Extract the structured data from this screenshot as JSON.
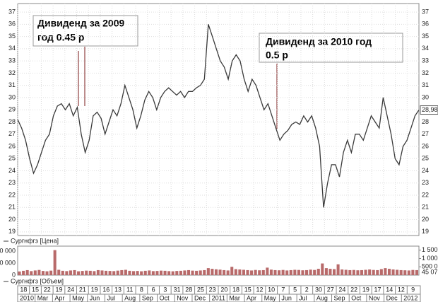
{
  "chart_data": [
    {
      "type": "line",
      "series": [
        {
          "name": "Сургнфгз [Цена]",
          "color": "#3a3a3a",
          "values": [
            28.2,
            27.5,
            26.5,
            25,
            23.8,
            24.5,
            25.5,
            26.5,
            27,
            28.5,
            29.3,
            29.5,
            29,
            29.5,
            28.5,
            29.2,
            27,
            25.5,
            26.5,
            28.5,
            28.8,
            28.3,
            27,
            28,
            29,
            28.5,
            29.5,
            31,
            30,
            29,
            27.5,
            28.5,
            29.8,
            30.5,
            30,
            29,
            30,
            30.5,
            30.8,
            30.5,
            30.2,
            30.5,
            30,
            30.5,
            30.5,
            30.8,
            31,
            31.5,
            36,
            35,
            34,
            33,
            32.5,
            31.5,
            33,
            33.5,
            33,
            31.5,
            30.5,
            31.5,
            31,
            30,
            29,
            29.5,
            28.5,
            27.5,
            26.5,
            27,
            27.3,
            27.8,
            28,
            27.8,
            28.5,
            28,
            28.5,
            27.5,
            26,
            21,
            23,
            24.5,
            24.5,
            23.5,
            25.5,
            26.5,
            25.5,
            27,
            27,
            26.5,
            27.5,
            28.5,
            28,
            27.5,
            30,
            28.5,
            27,
            25,
            24.5,
            26,
            26.5,
            27.5,
            28.5,
            28.98
          ]
        }
      ],
      "ylim": [
        18.7,
        37.7
      ],
      "yticks": [
        19,
        20,
        21,
        22,
        23,
        24,
        25,
        26,
        27,
        28,
        29,
        30,
        31,
        32,
        33,
        34,
        35,
        36,
        37
      ],
      "grid": true,
      "last_value": {
        "value": 28.98,
        "label": "28,98"
      },
      "annotations": [
        [
          "Дивиденд за 2009",
          "год 0.45 р"
        ],
        [
          "Дивиденд за 2010 год",
          "0.5 р"
        ]
      ]
    },
    {
      "type": "bar",
      "series": [
        {
          "name": "Сургнфгз [Объем]",
          "color": "#b86a6a",
          "values": [
            220,
            260,
            300,
            240,
            280,
            310,
            250,
            230,
            270,
            1500,
            320,
            260,
            240,
            280,
            300,
            230,
            250,
            270,
            260,
            240,
            300,
            280,
            260,
            250,
            240,
            270,
            300,
            320,
            260,
            240,
            250,
            230,
            260,
            280,
            240,
            250,
            270,
            260,
            240,
            230,
            250,
            260,
            280,
            300,
            270,
            260,
            280,
            300,
            420,
            380,
            350,
            330,
            300,
            280,
            500,
            360,
            340,
            320,
            300,
            280,
            310,
            290,
            300,
            450,
            330,
            300,
            290,
            310,
            280,
            300,
            320,
            310,
            290,
            300,
            330,
            310,
            380,
            700,
            420,
            380,
            360,
            650,
            340,
            320,
            300,
            310,
            290,
            300,
            320,
            340,
            310,
            300,
            360,
            420,
            380,
            340,
            320,
            300,
            290,
            280,
            310,
            300
          ]
        }
      ],
      "ylim": [
        0,
        1700
      ],
      "yticks": [
        {
          "value": 1500,
          "label": "1 500"
        },
        {
          "value": 1000,
          "label": "1 000"
        },
        {
          "value": 500,
          "label": "500 0"
        }
      ],
      "left_tick_labels": [
        "0 000",
        "0 000",
        "0"
      ],
      "last_label": "45 07"
    }
  ],
  "date_axis": {
    "days": [
      "18",
      "15",
      "22",
      "19",
      "24",
      "21",
      "19",
      "16",
      "13",
      "11",
      "8",
      "6",
      "3",
      "31",
      "28",
      "25",
      "23",
      "20",
      "18",
      "15",
      "12",
      "10",
      "7",
      "5",
      "2",
      "30",
      "27",
      "24",
      "22",
      "19",
      "17",
      "14",
      "12",
      "9"
    ],
    "months": [
      "2010",
      "Mar",
      "Apr",
      "May",
      "Jun",
      "Jul",
      "Aug",
      "Sep",
      "Oct",
      "Nov",
      "Dec",
      "2011",
      "Mar",
      "Apr",
      "May",
      "Jun",
      "Jul",
      "Aug",
      "Sep",
      "Oct",
      "Nov",
      "Dec",
      "2012"
    ]
  }
}
